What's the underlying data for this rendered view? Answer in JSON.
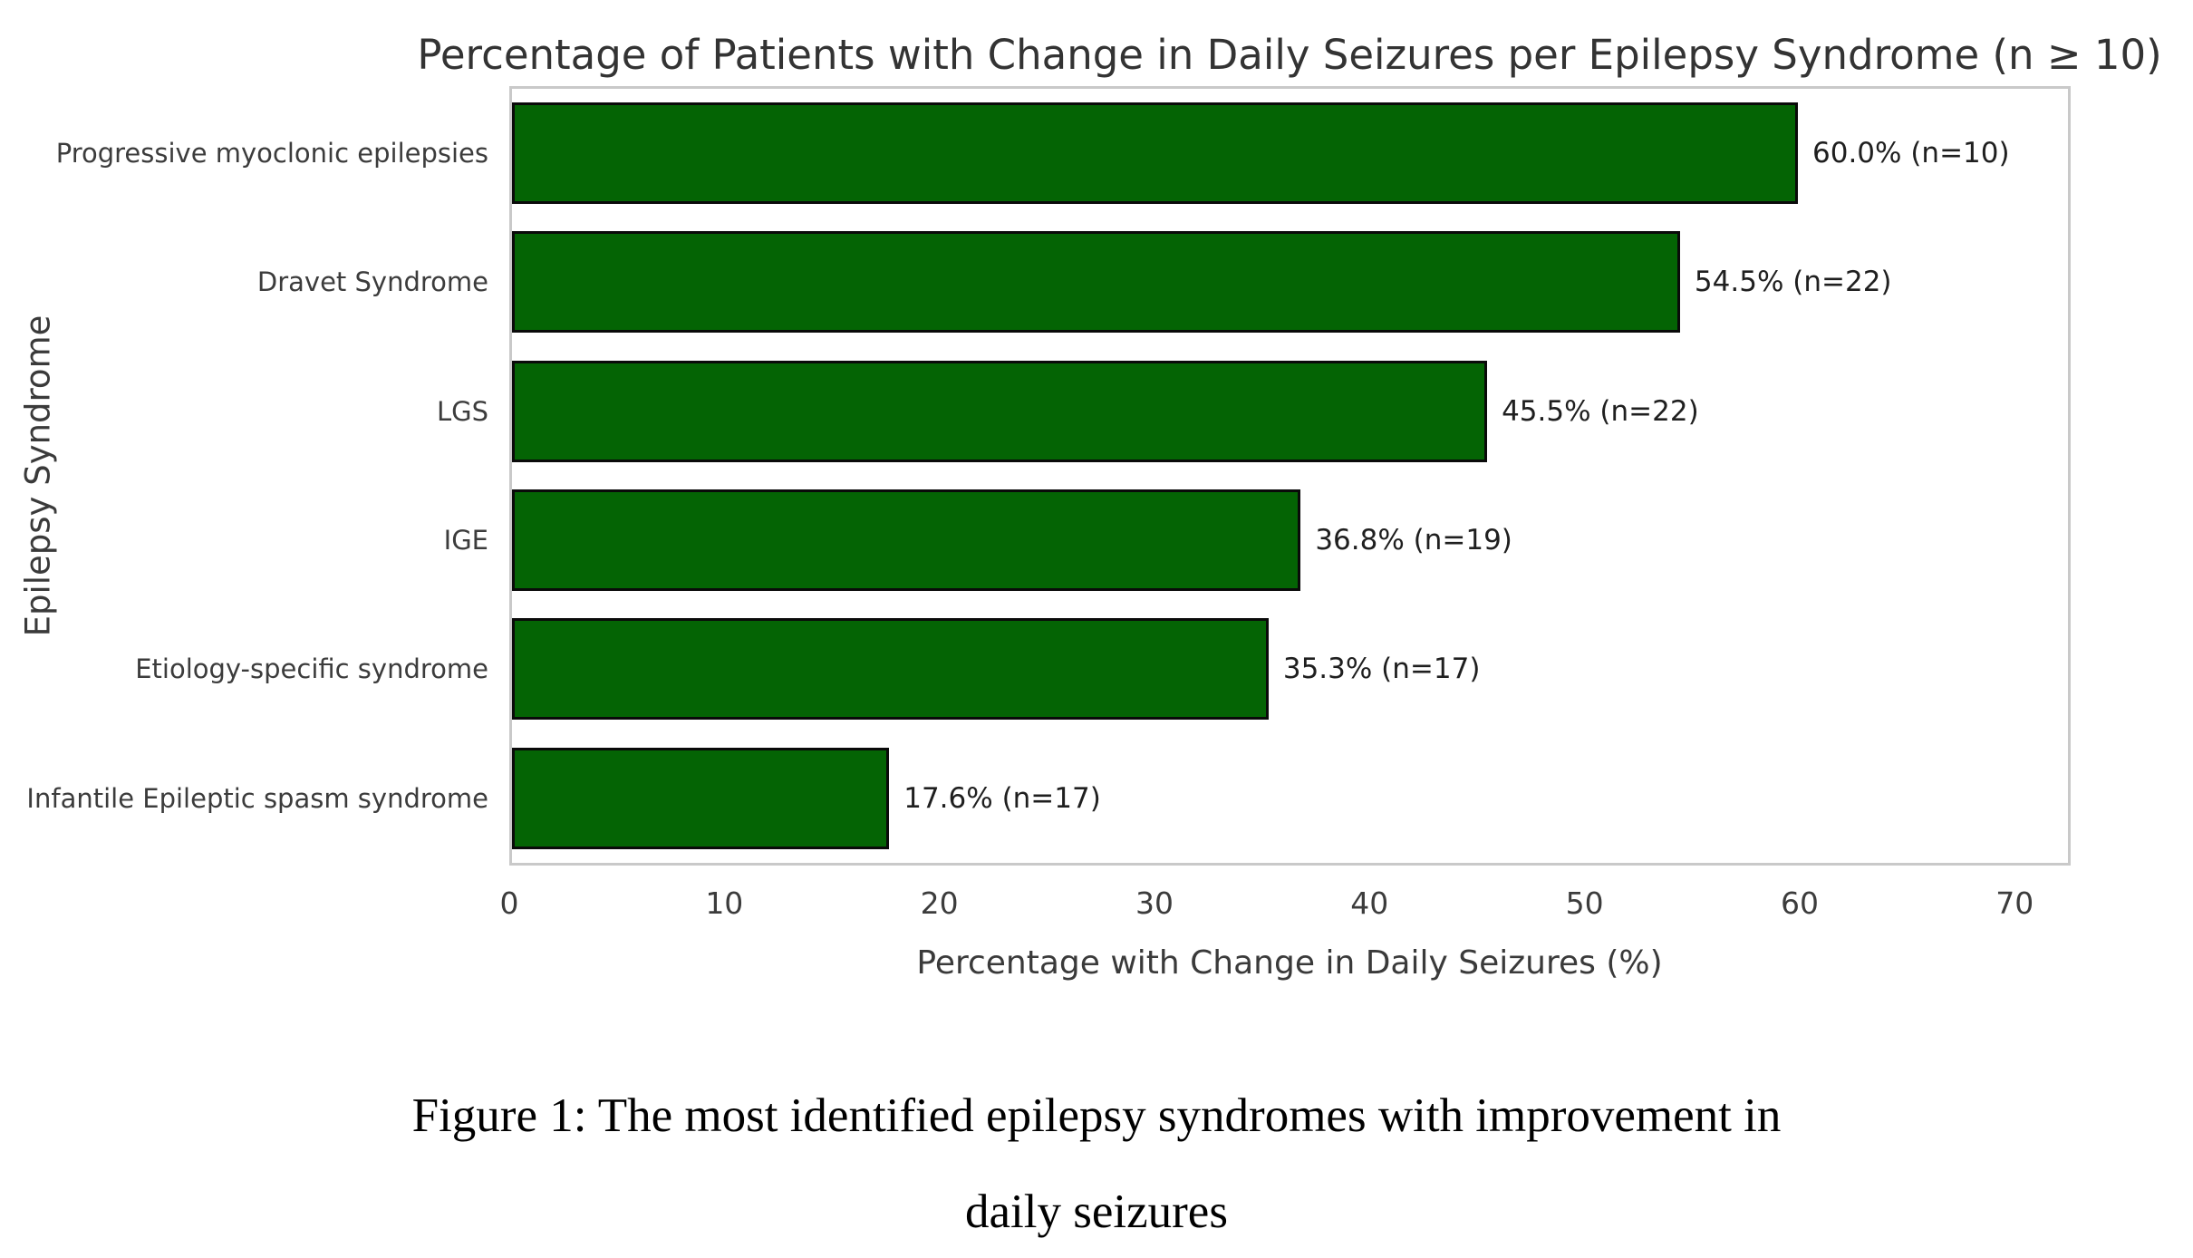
{
  "figure": {
    "title": "Percentage of Patients with Change in Daily Seizures per Epilepsy Syndrome (n ≥ 10)",
    "caption_line1": "Figure 1: The most identified epilepsy syndromes with improvement in",
    "caption_line2": "daily seizures"
  },
  "chart_data": {
    "type": "bar",
    "orientation": "horizontal",
    "title": "Percentage of Patients with Change in Daily Seizures per Epilepsy Syndrome (n ≥ 10)",
    "xlabel": "Percentage with Change in Daily Seizures (%)",
    "ylabel": "Epilepsy Syndrome",
    "categories": [
      "Progressive myoclonic epilepsies",
      "Dravet Syndrome",
      "LGS",
      "IGE",
      "Etiology-specific syndrome",
      "Infantile Epileptic spasm syndrome"
    ],
    "values": [
      60.0,
      54.5,
      45.5,
      36.8,
      35.3,
      17.6
    ],
    "sample_sizes": [
      10,
      22,
      22,
      19,
      17,
      17
    ],
    "bar_labels": [
      "60.0% (n=10)",
      "54.5% (n=22)",
      "45.5% (n=22)",
      "36.8% (n=19)",
      "35.3% (n=17)",
      "17.6% (n=17)"
    ],
    "xticks": [
      0,
      10,
      20,
      30,
      40,
      50,
      60,
      70
    ],
    "xlim": [
      0,
      72.6
    ],
    "grid": false,
    "legend": "none",
    "bar_color": "#046404",
    "bar_edge_color": "#0a0a0a"
  }
}
